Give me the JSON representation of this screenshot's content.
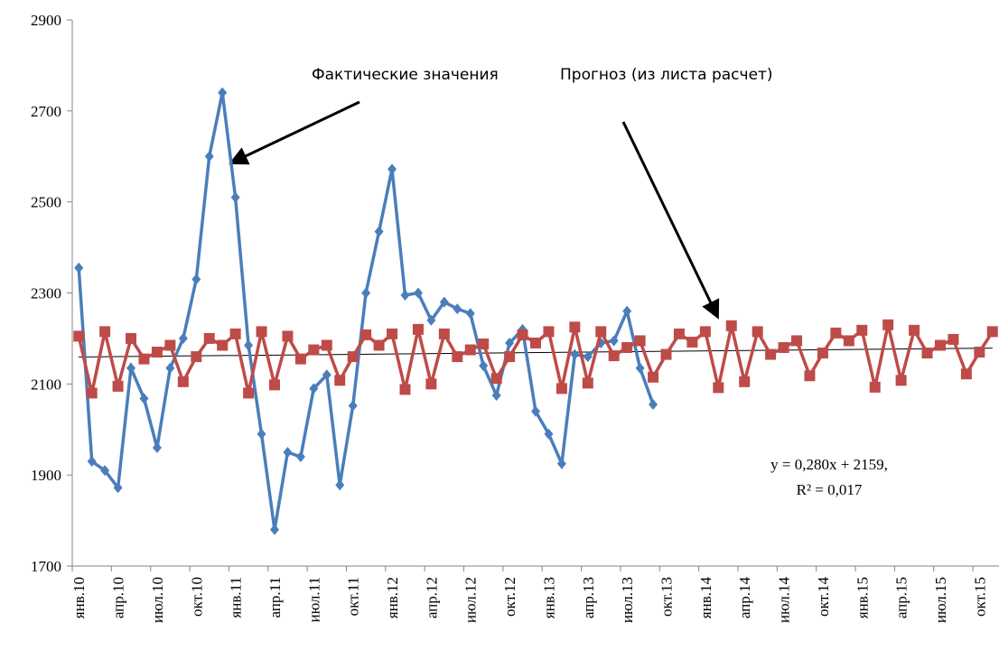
{
  "chart_data": {
    "type": "line",
    "categories": [
      "янв.10",
      null,
      null,
      "апр.10",
      null,
      null,
      "июл.10",
      null,
      null,
      "окт.10",
      null,
      null,
      "янв.11",
      null,
      null,
      "апр.11",
      null,
      null,
      "июл.11",
      null,
      null,
      "окт.11",
      null,
      null,
      "янв.12",
      null,
      null,
      "апр.12",
      null,
      null,
      "июл.12",
      null,
      null,
      "окт.12",
      null,
      null,
      "янв.13",
      null,
      null,
      "апр.13",
      null,
      null,
      "июл.13",
      null,
      null,
      "окт.13",
      null,
      null,
      "янв.14",
      null,
      null,
      "апр.14",
      null,
      null,
      "июл.14",
      null,
      null,
      "окт.14",
      null,
      null,
      "янв.15",
      null,
      null,
      "апр.15",
      null,
      null,
      "июл.15",
      null,
      null,
      "окт.15",
      null
    ],
    "series": [
      {
        "name": "Фактические значения",
        "color": "#4a7ebb",
        "marker": "diamond",
        "values": [
          2355,
          1930,
          1910,
          1872,
          2135,
          2068,
          1960,
          2135,
          2200,
          2330,
          2600,
          2740,
          2510,
          2185,
          1990,
          1780,
          1950,
          1940,
          2090,
          2120,
          1878,
          2052,
          2300,
          2435,
          2572,
          2295,
          2300,
          2240,
          2280,
          2265,
          2255,
          2140,
          2075,
          2190,
          2220,
          2040,
          1990,
          1925,
          2165,
          2160,
          2190,
          2195,
          2260,
          2135,
          2055,
          null,
          null,
          null,
          null,
          null,
          null,
          null,
          null,
          null,
          null,
          null,
          null,
          null,
          null,
          null,
          null,
          null,
          null,
          null,
          null,
          null,
          null,
          null,
          null,
          null,
          null
        ]
      },
      {
        "name": "Прогноз (из листа расчет)",
        "color": "#be4b48",
        "marker": "square",
        "values": [
          2205,
          2080,
          2215,
          2095,
          2200,
          2155,
          2170,
          2185,
          2105,
          2160,
          2200,
          2185,
          2210,
          2080,
          2215,
          2098,
          2205,
          2155,
          2175,
          2185,
          2108,
          2160,
          2208,
          2185,
          2210,
          2088,
          2220,
          2100,
          2210,
          2160,
          2175,
          2188,
          2112,
          2160,
          2208,
          2190,
          2215,
          2090,
          2225,
          2102,
          2215,
          2162,
          2180,
          2195,
          2115,
          2165,
          2210,
          2192,
          2215,
          2092,
          2228,
          2105,
          2215,
          2165,
          2180,
          2195,
          2118,
          2168,
          2212,
          2195,
          2218,
          2093,
          2230,
          2108,
          2218,
          2168,
          2185,
          2198,
          2122,
          2170,
          2215
        ]
      }
    ],
    "trendline": {
      "slope": 0.28,
      "intercept": 2159,
      "label": "y = 0,280x + 2159,",
      "r2_label": "R² = 0,017"
    },
    "ylim": [
      1700,
      2900
    ],
    "yticks": [
      1700,
      1900,
      2100,
      2300,
      2500,
      2700,
      2900
    ]
  }
}
